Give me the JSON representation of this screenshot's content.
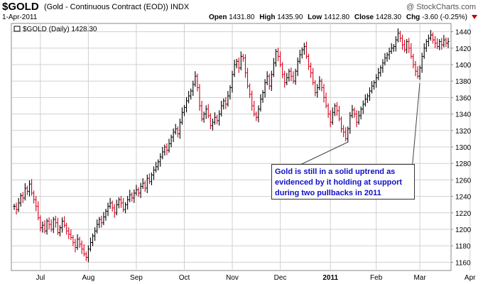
{
  "header": {
    "symbol": "$GOLD",
    "description": "(Gold - Continuous Contract (EOD)) INDX",
    "date": "1-Apr-2011",
    "open_label": "Open",
    "open": "1431.80",
    "high_label": "High",
    "high": "1435.90",
    "low_label": "Low",
    "low": "1412.80",
    "close_label": "Close",
    "close": "1428.30",
    "chg_label": "Chg",
    "chg": "-3.60 (-0.25%)",
    "brand": "@ StockCharts.com"
  },
  "legend": {
    "text": "$GOLD (Daily) 1428.30"
  },
  "annotation": {
    "text": "Gold is still in a solid uptrend as evidenced by it holding at support during two pullbacks in 2011"
  },
  "colors": {
    "up": "#000000",
    "down": "#d8001c",
    "grid": "#d0d0d0",
    "annotation_text": "#1010c8"
  },
  "chart_data": {
    "type": "ohlc",
    "title": "$GOLD (Daily) 1428.30",
    "ylim": [
      1150,
      1450
    ],
    "yticks": [
      1160,
      1180,
      1200,
      1220,
      1240,
      1260,
      1280,
      1300,
      1320,
      1340,
      1360,
      1380,
      1400,
      1420,
      1440
    ],
    "x_ticks": [
      "Jul",
      "Aug",
      "Sep",
      "Oct",
      "Nov",
      "Dec",
      "2011",
      "Feb",
      "Mar",
      "Apr"
    ],
    "x_tick_index": [
      12,
      34,
      56,
      78,
      100,
      122,
      145,
      166,
      186,
      209
    ],
    "close": [
      1228,
      1224,
      1232,
      1241,
      1238,
      1250,
      1246,
      1255,
      1244,
      1236,
      1228,
      1214,
      1202,
      1205,
      1198,
      1210,
      1206,
      1200,
      1212,
      1208,
      1196,
      1202,
      1210,
      1205,
      1198,
      1194,
      1190,
      1184,
      1178,
      1188,
      1182,
      1176,
      1170,
      1166,
      1176,
      1184,
      1192,
      1198,
      1206,
      1212,
      1208,
      1215,
      1222,
      1228,
      1232,
      1226,
      1220,
      1230,
      1236,
      1232,
      1224,
      1230,
      1236,
      1242,
      1238,
      1244,
      1248,
      1244,
      1252,
      1256,
      1250,
      1262,
      1258,
      1266,
      1272,
      1276,
      1282,
      1288,
      1294,
      1300,
      1296,
      1304,
      1312,
      1318,
      1322,
      1316,
      1330,
      1342,
      1348,
      1356,
      1362,
      1368,
      1376,
      1386,
      1372,
      1350,
      1334,
      1340,
      1346,
      1338,
      1326,
      1330,
      1336,
      1332,
      1340,
      1350,
      1356,
      1352,
      1362,
      1372,
      1388,
      1400,
      1404,
      1396,
      1410,
      1408,
      1390,
      1374,
      1364,
      1350,
      1340,
      1336,
      1346,
      1358,
      1366,
      1378,
      1386,
      1374,
      1388,
      1402,
      1416,
      1410,
      1400,
      1388,
      1378,
      1384,
      1392,
      1386,
      1380,
      1392,
      1404,
      1412,
      1418,
      1422,
      1410,
      1398,
      1390,
      1378,
      1366,
      1372,
      1380,
      1372,
      1360,
      1350,
      1340,
      1330,
      1342,
      1350,
      1344,
      1334,
      1322,
      1318,
      1310,
      1322,
      1338,
      1345,
      1340,
      1330,
      1338,
      1346,
      1352,
      1358,
      1362,
      1368,
      1374,
      1378,
      1384,
      1390,
      1396,
      1402,
      1408,
      1412,
      1416,
      1420,
      1422,
      1430,
      1438,
      1432,
      1424,
      1418,
      1428,
      1420,
      1410,
      1400,
      1392,
      1386,
      1396,
      1410,
      1420,
      1428,
      1432,
      1436,
      1430,
      1426,
      1422,
      1428,
      1424,
      1430,
      1426,
      1428
    ]
  }
}
